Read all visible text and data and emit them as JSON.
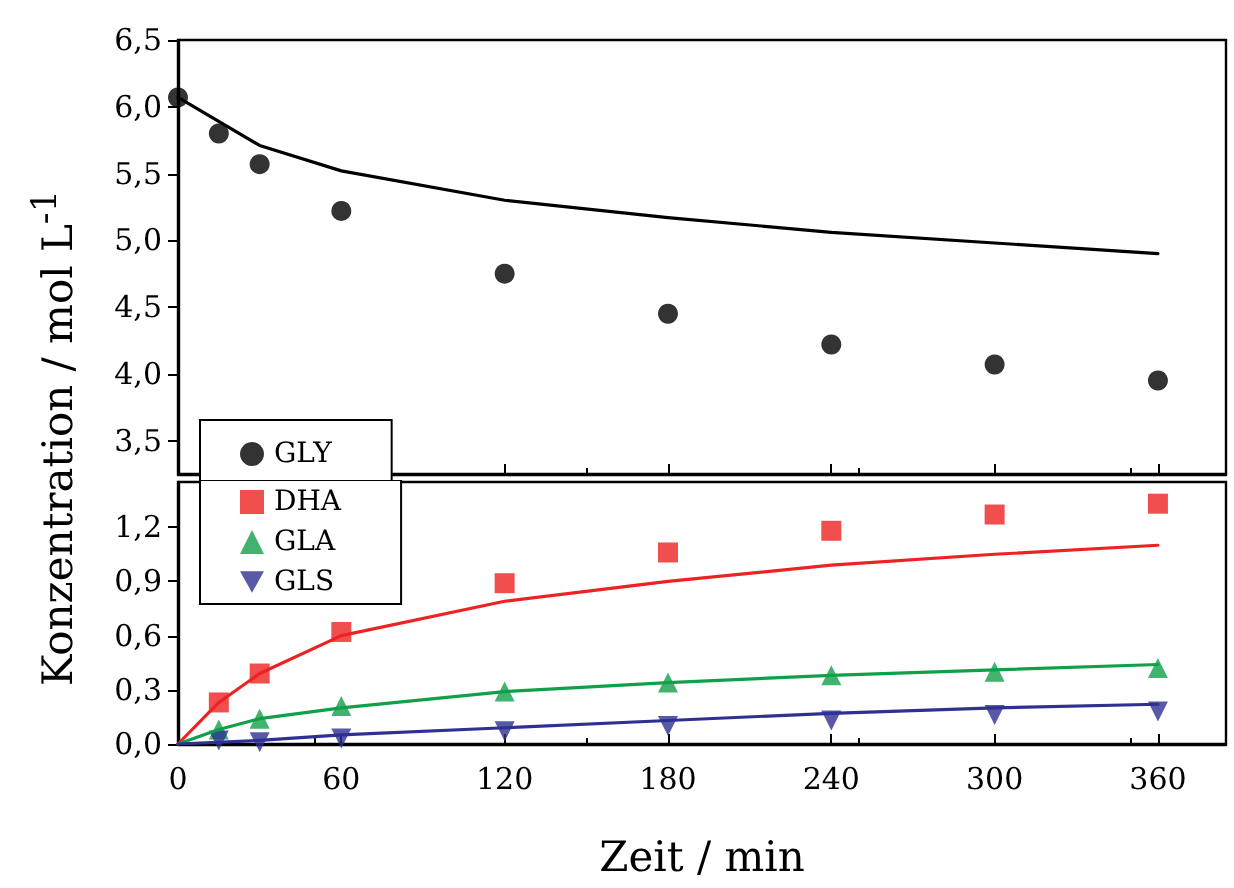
{
  "chart_data": [
    {
      "type": "scatter",
      "ylabel": "Konzentration / mol L$^{-1}$",
      "xlim": [
        0,
        385
      ],
      "xticks": [
        0,
        60,
        120,
        180,
        240,
        300,
        360
      ],
      "ylim": [
        3.25,
        6.5
      ],
      "yticks": [
        {
          "value": 3.5,
          "label": "3,5"
        },
        {
          "value": 4.0,
          "label": "4,0"
        },
        {
          "value": 4.5,
          "label": "4,5"
        },
        {
          "value": 5.0,
          "label": "5,0"
        },
        {
          "value": 5.5,
          "label": "5,5"
        },
        {
          "value": 6.0,
          "label": "6,0"
        },
        {
          "value": 6.5,
          "label": "6,5"
        }
      ],
      "tick_labels": "y",
      "grid": false,
      "legend": "bottom left",
      "series": [
        {
          "name": "GLY",
          "marker": "circle",
          "color": "#000000",
          "x": [
            0,
            15,
            30,
            60,
            120,
            180,
            240,
            300,
            360
          ],
          "values": [
            6.07,
            5.8,
            5.57,
            5.22,
            4.75,
            4.45,
            4.22,
            4.07,
            3.95
          ]
        },
        {
          "type": "line",
          "marker": "none",
          "color": "#000000",
          "x": [
            0,
            30,
            60,
            120,
            180,
            240,
            300,
            360
          ],
          "values": [
            6.07,
            5.71,
            5.52,
            5.3,
            5.17,
            5.06,
            4.98,
            4.9
          ]
        }
      ]
    },
    {
      "type": "scatter",
      "xlabel": "Zeit / min",
      "xlim": [
        0,
        385
      ],
      "xticks": [
        0,
        60,
        120,
        180,
        240,
        300,
        360
      ],
      "ylim": [
        0,
        1.45
      ],
      "yticks": [
        {
          "value": 0,
          "label": "0,0"
        },
        {
          "value": 0.3,
          "label": "0,3"
        },
        {
          "value": 0.6,
          "label": "0,6"
        },
        {
          "value": 0.9,
          "label": "0,9"
        },
        {
          "value": 1.2,
          "label": "1,2"
        }
      ],
      "grid": false,
      "legend": "top left",
      "series": [
        {
          "name": "DHA",
          "marker": "square",
          "color": "#ee2222",
          "x": [
            15,
            30,
            60,
            120,
            180,
            240,
            300,
            360
          ],
          "values": [
            0.23,
            0.39,
            0.62,
            0.89,
            1.06,
            1.18,
            1.27,
            1.33
          ]
        },
        {
          "name": "GLA",
          "marker": "triangle",
          "color": "#11a04a",
          "x": [
            15,
            30,
            60,
            120,
            180,
            240,
            300,
            360
          ],
          "values": [
            0.08,
            0.14,
            0.21,
            0.29,
            0.34,
            0.38,
            0.4,
            0.42
          ]
        },
        {
          "name": "GLS",
          "marker": "triangle-down",
          "color": "#2e3192",
          "x": [
            15,
            30,
            60,
            120,
            180,
            240,
            300,
            360
          ],
          "values": [
            0.02,
            0.01,
            0.03,
            0.07,
            0.1,
            0.13,
            0.16,
            0.18
          ]
        },
        {
          "type": "line",
          "marker": "none",
          "color": "#ee2222",
          "x": [
            0,
            15,
            30,
            60,
            120,
            180,
            240,
            300,
            360
          ],
          "values": [
            0,
            0.23,
            0.39,
            0.6,
            0.79,
            0.9,
            0.99,
            1.05,
            1.1
          ]
        },
        {
          "type": "line",
          "marker": "none",
          "color": "#11a04a",
          "x": [
            0,
            15,
            30,
            60,
            120,
            180,
            240,
            300,
            360
          ],
          "values": [
            0,
            0.08,
            0.14,
            0.2,
            0.29,
            0.34,
            0.38,
            0.41,
            0.44
          ]
        },
        {
          "type": "line",
          "marker": "none",
          "color": "#2e3192",
          "x": [
            0,
            30,
            60,
            120,
            180,
            240,
            300,
            360
          ],
          "values": [
            0,
            0.02,
            0.05,
            0.09,
            0.13,
            0.17,
            0.2,
            0.22
          ]
        }
      ]
    }
  ]
}
